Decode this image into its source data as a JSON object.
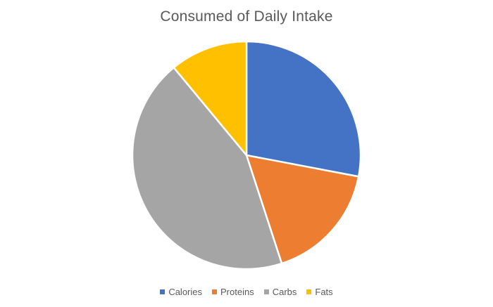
{
  "chart_data": {
    "type": "pie",
    "title": "Consumed of Daily Intake",
    "categories": [
      "Calories",
      "Proteins",
      "Carbs",
      "Fats"
    ],
    "values": [
      28,
      17,
      44,
      11
    ],
    "colors": [
      "#4472C4",
      "#ED7D31",
      "#A5A5A5",
      "#FFC000"
    ],
    "legend_position": "bottom",
    "start_angle_deg": 0,
    "direction": "clockwise"
  }
}
